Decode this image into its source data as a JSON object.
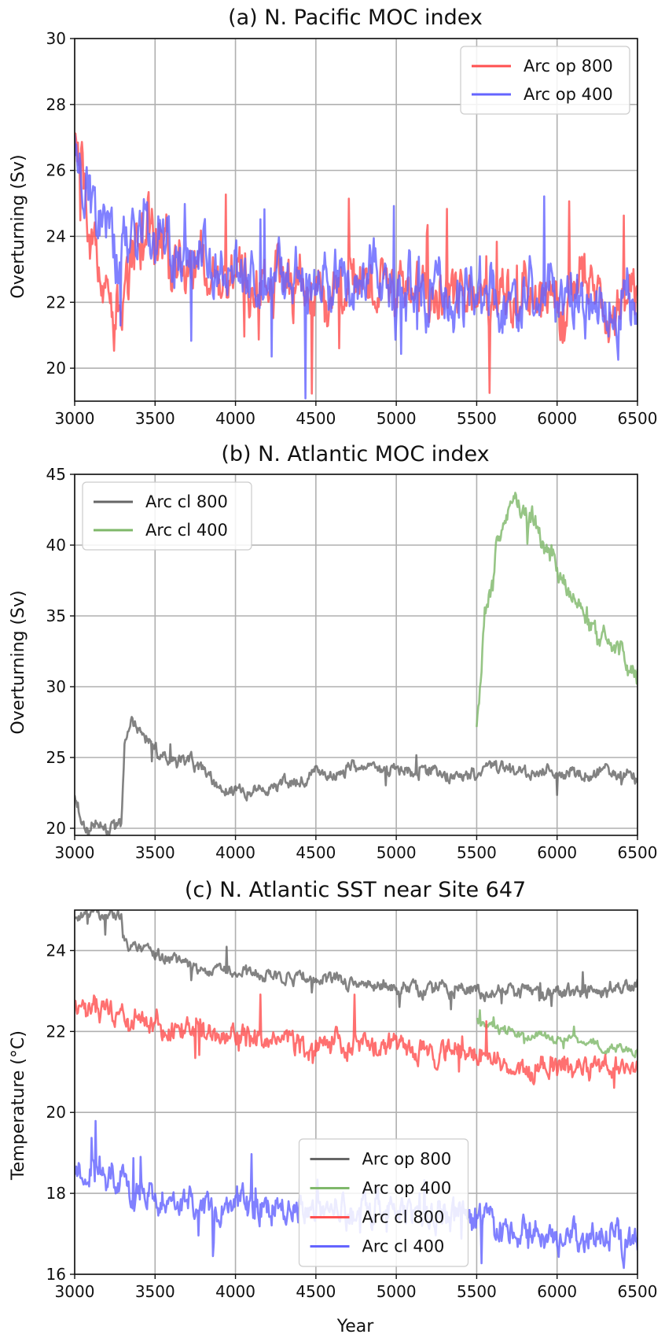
{
  "figure": {
    "xlabel": "Year"
  },
  "chart_data": [
    {
      "type": "line",
      "title": "(a) N. Pacific MOC index",
      "xlabel": "",
      "ylabel": "Overturning (Sv)",
      "xlim": [
        3000,
        6500
      ],
      "ylim": [
        19,
        30
      ],
      "xticks": [
        3000,
        3500,
        4000,
        4500,
        5000,
        5500,
        6000,
        6500
      ],
      "yticks": [
        20,
        22,
        24,
        26,
        28,
        30
      ],
      "grid": true,
      "legend_position": "top-right",
      "series": [
        {
          "name": "Arc op 800",
          "color": "#ff5050",
          "x": [
            3000,
            3050,
            3100,
            3150,
            3200,
            3250,
            3300,
            3350,
            3400,
            3450,
            3500,
            3600,
            3700,
            3800,
            3900,
            4000,
            4100,
            4200,
            4300,
            4400,
            4500,
            4600,
            4700,
            4800,
            4900,
            5000,
            5100,
            5200,
            5300,
            5400,
            5500,
            5600,
            5700,
            5800,
            5900,
            6000,
            6100,
            6200,
            6300,
            6400,
            6500
          ],
          "y": [
            26.8,
            25.6,
            24.3,
            22.9,
            22.3,
            22.0,
            22.1,
            23.3,
            23.8,
            24.0,
            23.6,
            23.4,
            23.2,
            23.0,
            22.9,
            22.8,
            22.7,
            22.6,
            22.5,
            22.5,
            22.5,
            22.4,
            22.4,
            22.4,
            22.3,
            22.3,
            22.3,
            22.3,
            22.2,
            22.2,
            22.2,
            22.2,
            22.2,
            22.2,
            22.1,
            22.1,
            22.1,
            22.1,
            22.1,
            22.0,
            22.0
          ],
          "amplitude": 1.9
        },
        {
          "name": "Arc op 400",
          "color": "#6464ff",
          "x": [
            3000,
            3050,
            3100,
            3150,
            3200,
            3250,
            3300,
            3350,
            3400,
            3450,
            3500,
            3600,
            3700,
            3800,
            3900,
            4000,
            4100,
            4200,
            4300,
            4400,
            4500,
            4600,
            4700,
            4800,
            4900,
            5000,
            5100,
            5200,
            5300,
            5400,
            5500,
            5600,
            5700,
            5800,
            5900,
            6000,
            6100,
            6200,
            6300,
            6400,
            6500
          ],
          "y": [
            27.2,
            26.0,
            25.2,
            24.6,
            24.1,
            23.7,
            23.6,
            24.2,
            24.4,
            24.3,
            24.0,
            23.6,
            23.4,
            23.2,
            23.0,
            22.9,
            22.8,
            22.7,
            22.6,
            22.5,
            22.5,
            22.4,
            22.4,
            22.3,
            22.3,
            22.3,
            22.2,
            22.2,
            22.2,
            22.2,
            22.2,
            22.1,
            22.1,
            22.1,
            22.1,
            22.1,
            22.1,
            22.0,
            22.0,
            22.0,
            22.0
          ],
          "amplitude": 2.0
        }
      ]
    },
    {
      "type": "line",
      "title": "(b) N. Atlantic MOC index",
      "xlabel": "",
      "ylabel": "Overturning (Sv)",
      "xlim": [
        3000,
        6500
      ],
      "ylim": [
        19.5,
        45
      ],
      "xticks": [
        3000,
        3500,
        4000,
        4500,
        5000,
        5500,
        6000,
        6500
      ],
      "yticks": [
        20,
        25,
        30,
        35,
        40,
        45
      ],
      "grid": true,
      "legend_position": "top-left",
      "series": [
        {
          "name": "Arc cl 800",
          "color": "#666666",
          "x": [
            3000,
            3020,
            3050,
            3100,
            3150,
            3200,
            3250,
            3290,
            3310,
            3350,
            3400,
            3500,
            3600,
            3700,
            3800,
            3900,
            4000,
            4100,
            4200,
            4300,
            4400,
            4500,
            4600,
            4700,
            4800,
            4900,
            5000,
            5100,
            5200,
            5300,
            5400,
            5500,
            5600,
            5700,
            5800,
            5900,
            6000,
            6100,
            6200,
            6300,
            6400,
            6500
          ],
          "y": [
            22.5,
            21.6,
            20.2,
            19.9,
            20.4,
            20.0,
            20.1,
            20.2,
            25.5,
            27.4,
            26.9,
            25.3,
            25.0,
            24.8,
            24.0,
            23.0,
            22.7,
            22.7,
            22.9,
            23.2,
            23.5,
            23.9,
            23.9,
            24.0,
            24.2,
            24.2,
            24.2,
            24.0,
            24.0,
            23.8,
            23.6,
            23.7,
            24.0,
            24.1,
            23.9,
            23.8,
            24.0,
            23.9,
            23.8,
            23.9,
            23.8,
            23.6
          ],
          "amplitude": 1.0
        },
        {
          "name": "Arc cl 400",
          "color": "#7fb86a",
          "x": [
            5500,
            5520,
            5550,
            5600,
            5650,
            5700,
            5750,
            5800,
            5850,
            5900,
            5950,
            6000,
            6050,
            6100,
            6150,
            6200,
            6250,
            6300,
            6350,
            6400,
            6450,
            6500
          ],
          "y": [
            26.5,
            29.5,
            35.0,
            38.5,
            40.5,
            42.5,
            42.8,
            42.0,
            41.3,
            40.0,
            39.5,
            38.5,
            37.3,
            36.0,
            35.2,
            34.3,
            33.5,
            33.2,
            32.6,
            32.3,
            31.8,
            30.8
          ],
          "amplitude": 1.7
        }
      ]
    },
    {
      "type": "line",
      "title": "(c) N. Atlantic SST near Site 647",
      "xlabel": "Year",
      "ylabel": "Temperature (°C)",
      "xlim": [
        3000,
        6500
      ],
      "ylim": [
        16,
        25
      ],
      "xticks": [
        3000,
        3500,
        4000,
        4500,
        5000,
        5500,
        6000,
        6500
      ],
      "yticks": [
        16,
        18,
        20,
        22,
        24
      ],
      "grid": true,
      "legend_position": "bottom-center",
      "series": [
        {
          "name": "Arc op 800",
          "color": "#666666",
          "x": [
            3000,
            3100,
            3200,
            3290,
            3300,
            3350,
            3400,
            3500,
            3600,
            3700,
            3800,
            3900,
            4000,
            4100,
            4200,
            4300,
            4400,
            4500,
            4600,
            4700,
            4800,
            4900,
            5000,
            5100,
            5200,
            5300,
            5400,
            5500,
            5600,
            5700,
            5800,
            5900,
            6000,
            6100,
            6200,
            6300,
            6400,
            6500
          ],
          "y": [
            24.9,
            24.9,
            24.9,
            24.9,
            24.2,
            24.1,
            24.0,
            23.9,
            23.8,
            23.7,
            23.6,
            23.5,
            23.5,
            23.4,
            23.4,
            23.3,
            23.3,
            23.3,
            23.3,
            23.2,
            23.2,
            23.2,
            23.1,
            23.1,
            23.1,
            23.1,
            23.0,
            23.0,
            23.0,
            23.0,
            23.0,
            23.0,
            23.0,
            23.0,
            23.0,
            23.0,
            23.0,
            23.1
          ],
          "amplitude": 0.35
        },
        {
          "name": "Arc op 400",
          "color": "#7fb86a",
          "x": [
            5500,
            5550,
            5600,
            5650,
            5700,
            5750,
            5800,
            5850,
            5900,
            5950,
            6000,
            6050,
            6100,
            6150,
            6200,
            6250,
            6300,
            6350,
            6400,
            6450,
            6500
          ],
          "y": [
            22.3,
            22.1,
            22.1,
            22.0,
            22.0,
            22.0,
            21.9,
            21.9,
            21.9,
            21.8,
            21.8,
            21.8,
            21.8,
            21.7,
            21.7,
            21.7,
            21.6,
            21.6,
            21.6,
            21.5,
            21.5
          ],
          "amplitude": 0.22
        },
        {
          "name": "Arc cl 800",
          "color": "#ff5050",
          "x": [
            3000,
            3100,
            3200,
            3300,
            3350,
            3400,
            3500,
            3600,
            3700,
            3800,
            3900,
            4000,
            4100,
            4200,
            4300,
            4400,
            4500,
            4600,
            4700,
            4800,
            4900,
            5000,
            5100,
            5200,
            5300,
            5400,
            5500,
            5600,
            5700,
            5800,
            5900,
            6000,
            6100,
            6200,
            6300,
            6400,
            6500
          ],
          "y": [
            22.6,
            22.5,
            22.5,
            22.4,
            22.1,
            22.4,
            22.2,
            22.1,
            22.0,
            22.0,
            21.9,
            21.9,
            21.9,
            21.8,
            21.8,
            21.7,
            21.7,
            21.7,
            21.6,
            21.6,
            21.6,
            21.5,
            21.5,
            21.5,
            21.4,
            21.4,
            21.4,
            21.3,
            21.2,
            21.2,
            21.1,
            21.1,
            21.1,
            21.0,
            21.0,
            21.0,
            21.0
          ],
          "amplitude": 0.65
        },
        {
          "name": "Arc cl 400",
          "color": "#6464ff",
          "x": [
            3000,
            3100,
            3200,
            3300,
            3350,
            3400,
            3500,
            3600,
            3700,
            3800,
            3900,
            4000,
            4100,
            4200,
            4300,
            4400,
            4500,
            4600,
            4700,
            4800,
            4900,
            5000,
            5100,
            5200,
            5300,
            5400,
            5500,
            5600,
            5700,
            5800,
            5900,
            6000,
            6100,
            6200,
            6300,
            6400,
            6500
          ],
          "y": [
            18.4,
            18.4,
            18.3,
            18.3,
            18.0,
            18.0,
            17.8,
            17.7,
            17.7,
            17.7,
            17.6,
            17.6,
            17.6,
            17.6,
            17.6,
            17.6,
            17.6,
            17.6,
            17.6,
            17.6,
            17.6,
            17.6,
            17.6,
            17.6,
            17.5,
            17.4,
            17.3,
            17.2,
            17.1,
            17.0,
            17.0,
            17.0,
            16.9,
            16.9,
            16.9,
            16.9,
            16.9
          ],
          "amplitude": 0.85
        }
      ]
    }
  ]
}
